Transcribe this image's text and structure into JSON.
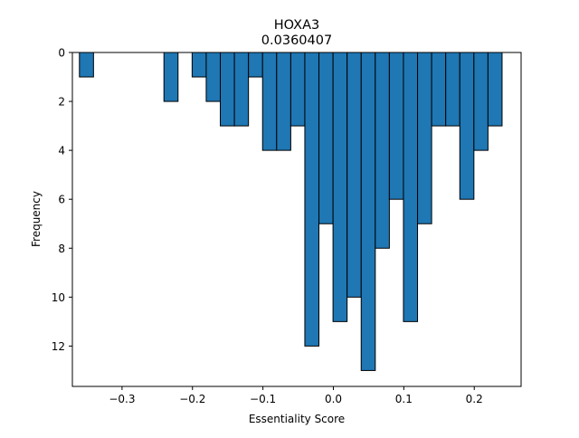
{
  "chart_data": {
    "type": "bar",
    "title": "HOXA3",
    "subtitle": "0.0360407",
    "xlabel": "Essentiality Score",
    "ylabel": "Frequency",
    "xlim": [
      -0.3705,
      0.2665
    ],
    "ylim": [
      13.65,
      0
    ],
    "y_inverted": true,
    "grid": false,
    "bar_color": "#1f77b4",
    "edge_color": "#000000",
    "x_ticks": [
      -0.3,
      -0.2,
      -0.1,
      0.0,
      0.1,
      0.2
    ],
    "x_tick_labels": [
      "−0.3",
      "−0.2",
      "−0.1",
      "0.0",
      "0.1",
      "0.2"
    ],
    "y_ticks": [
      0,
      2,
      4,
      6,
      8,
      10,
      12
    ],
    "y_tick_labels": [
      "0",
      "2",
      "4",
      "6",
      "8",
      "10",
      "12"
    ],
    "bins": [
      {
        "x0": -0.3605,
        "x1": -0.3405,
        "value": 1
      },
      {
        "x0": -0.2405,
        "x1": -0.2205,
        "value": 2
      },
      {
        "x0": -0.2005,
        "x1": -0.1805,
        "value": 1
      },
      {
        "x0": -0.1805,
        "x1": -0.1605,
        "value": 2
      },
      {
        "x0": -0.1605,
        "x1": -0.1405,
        "value": 3
      },
      {
        "x0": -0.1405,
        "x1": -0.1205,
        "value": 3
      },
      {
        "x0": -0.1205,
        "x1": -0.1005,
        "value": 1
      },
      {
        "x0": -0.1005,
        "x1": -0.0805,
        "value": 4
      },
      {
        "x0": -0.0805,
        "x1": -0.0605,
        "value": 4
      },
      {
        "x0": -0.0605,
        "x1": -0.0405,
        "value": 3
      },
      {
        "x0": -0.0405,
        "x1": -0.0205,
        "value": 12
      },
      {
        "x0": -0.0205,
        "x1": -0.0005,
        "value": 7
      },
      {
        "x0": -0.0005,
        "x1": 0.0195,
        "value": 11
      },
      {
        "x0": 0.0195,
        "x1": 0.0395,
        "value": 10
      },
      {
        "x0": 0.0395,
        "x1": 0.0595,
        "value": 13
      },
      {
        "x0": 0.0595,
        "x1": 0.0795,
        "value": 8
      },
      {
        "x0": 0.0795,
        "x1": 0.0995,
        "value": 6
      },
      {
        "x0": 0.0995,
        "x1": 0.1195,
        "value": 11
      },
      {
        "x0": 0.1195,
        "x1": 0.1395,
        "value": 7
      },
      {
        "x0": 0.1395,
        "x1": 0.1595,
        "value": 3
      },
      {
        "x0": 0.1595,
        "x1": 0.1795,
        "value": 3
      },
      {
        "x0": 0.1795,
        "x1": 0.1995,
        "value": 6
      },
      {
        "x0": 0.1995,
        "x1": 0.2195,
        "value": 4
      },
      {
        "x0": 0.2195,
        "x1": 0.2395,
        "value": 3
      }
    ]
  }
}
